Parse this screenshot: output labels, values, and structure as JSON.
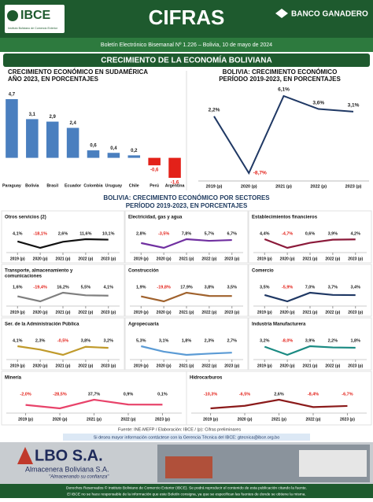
{
  "header": {
    "logo": "IBCE",
    "logo_sub": "Instituto Boliviano de Comercio Exterior",
    "title": "CIFRAS",
    "sponsor": "BANCO GANADERO",
    "subtitle": "Boletín Electrónico Bisemanal Nº 1.226 – Bolivia, 10 de mayo de 2024"
  },
  "section_title": "CRECIMIENTO DE LA ECONOMÍA BOLIVIANA",
  "sectors_title": [
    "BOLIVIA: CRECIMIENTO ECONÓMICO POR SECTORES",
    "PERÍODO 2019-2023, EN PORCENTAJES"
  ],
  "chart_data": [
    {
      "type": "bar",
      "title": [
        "CRECIMIENTO ECONÓMICO EN SUDAMÉRICA",
        "AÑO 2023, EN PORCENTAJES"
      ],
      "categories": [
        "Paraguay",
        "Bolivia",
        "Brasil",
        "Ecuador",
        "Colombia",
        "Uruguay",
        "Chile",
        "Perú",
        "Argentina"
      ],
      "values": [
        4.7,
        3.1,
        2.9,
        2.4,
        0.6,
        0.4,
        0.2,
        -0.6,
        -1.6
      ],
      "value_labels": [
        "4,7",
        "3,1",
        "2,9",
        "2,4",
        "0,6",
        "0,4",
        "0,2",
        "-0,6",
        "-1,6"
      ],
      "color": "#4a7fbf",
      "negative_color": "#e32119"
    },
    {
      "type": "line",
      "title": [
        "BOLIVIA: CRECIMIENTO ECONÓMICO",
        "PERÍODO 2019-2023, EN PORCENTAJES"
      ],
      "categories": [
        "2019 (p)",
        "2020 (p)",
        "2021 (p)",
        "2022 (p)",
        "2023 (p)"
      ],
      "values": [
        2.2,
        -8.7,
        6.1,
        3.6,
        3.1
      ],
      "value_labels": [
        "2,2%",
        "-8,7%",
        "6,1%",
        "3,6%",
        "3,1%"
      ],
      "color": "#1f3864"
    },
    {
      "type": "sparkline",
      "title": [
        "Otros servicios (2)"
      ],
      "categories": [
        "2019 (p)",
        "2020 (p)",
        "2021 (p)",
        "2022 (p)",
        "2023 (p)"
      ],
      "values": [
        4.1,
        -18.1,
        2.6,
        11.6,
        10.1
      ],
      "value_labels": [
        "4,1%",
        "-18,1%",
        "2,6%",
        "11,6%",
        "10,1%"
      ],
      "color": "#111111"
    },
    {
      "type": "sparkline",
      "title": [
        "Electricidad, gas y agua"
      ],
      "categories": [
        "2019 (p)",
        "2020 (p)",
        "2021 (p)",
        "2022 (p)",
        "2023 (p)"
      ],
      "values": [
        2.8,
        -3.5,
        7.8,
        5.7,
        6.7
      ],
      "value_labels": [
        "2,8%",
        "-3,5%",
        "7,8%",
        "5,7%",
        "6,7%"
      ],
      "color": "#7030a0"
    },
    {
      "type": "sparkline",
      "title": [
        "Establecimientos financieros"
      ],
      "categories": [
        "2019 (p)",
        "2020 (p)",
        "2021 (p)",
        "2022 (p)",
        "2023 (p)"
      ],
      "values": [
        4.4,
        -4.7,
        0.6,
        3.9,
        4.2
      ],
      "value_labels": [
        "4,4%",
        "-4,7%",
        "0,6%",
        "3,9%",
        "4,2%"
      ],
      "color": "#8b1a3a"
    },
    {
      "type": "sparkline",
      "title": [
        "Transporte, almacenamiento y",
        "comunicaciones"
      ],
      "categories": [
        "2019 (p)",
        "2020 (p)",
        "2021 (p)",
        "2022 (p)",
        "2023 (p)"
      ],
      "values": [
        1.6,
        -19.4,
        16.2,
        5.5,
        4.1
      ],
      "value_labels": [
        "1,6%",
        "-19,4%",
        "16,2%",
        "5,5%",
        "4,1%"
      ],
      "color": "#7f7f7f"
    },
    {
      "type": "sparkline",
      "title": [
        "Construcción"
      ],
      "categories": [
        "2019 (p)",
        "2020 (p)",
        "2021 (p)",
        "2022 (p)",
        "2023 (p)"
      ],
      "values": [
        1.9,
        -19.8,
        17.9,
        3.8,
        3.5
      ],
      "value_labels": [
        "1,9%",
        "-19,8%",
        "17,9%",
        "3,8%",
        "3,5%"
      ],
      "color": "#a0622d"
    },
    {
      "type": "sparkline",
      "title": [
        "Comercio"
      ],
      "categories": [
        "2019 (p)",
        "2020 (p)",
        "2021 (p)",
        "2022 (p)",
        "2023 (p)"
      ],
      "values": [
        3.5,
        -5.9,
        7.0,
        3.7,
        3.4
      ],
      "value_labels": [
        "3,5%",
        "-5,9%",
        "7,0%",
        "3,7%",
        "3,4%"
      ],
      "color": "#1f3864"
    },
    {
      "type": "sparkline",
      "title": [
        "Ser. de la Administración Pública"
      ],
      "categories": [
        "2019 (p)",
        "2020 (p)",
        "2021 (p)",
        "2022 (p)",
        "2023 (p)"
      ],
      "values": [
        4.1,
        2.3,
        -0.5,
        3.8,
        3.2
      ],
      "value_labels": [
        "4,1%",
        "2,3%",
        "-0,5%",
        "3,8%",
        "3,2%"
      ],
      "color": "#c09a2b"
    },
    {
      "type": "sparkline",
      "title": [
        "Agropecuaria"
      ],
      "categories": [
        "2019 (p)",
        "2020 (p)",
        "2021 (p)",
        "2022 (p)",
        "2023 (p)"
      ],
      "values": [
        5.3,
        3.1,
        1.8,
        2.3,
        2.7
      ],
      "value_labels": [
        "5,3%",
        "3,1%",
        "1,8%",
        "2,3%",
        "2,7%"
      ],
      "color": "#5b9bd5"
    },
    {
      "type": "sparkline",
      "title": [
        "Industria Manufacturera"
      ],
      "categories": [
        "2019 (p)",
        "2020 (p)",
        "2021 (p)",
        "2022 (p)",
        "2023 (p)"
      ],
      "values": [
        3.2,
        -8.0,
        3.9,
        2.2,
        1.8
      ],
      "value_labels": [
        "3,2%",
        "-8,0%",
        "3,9%",
        "2,2%",
        "1,8%"
      ],
      "color": "#1a8a82"
    },
    {
      "type": "sparkline",
      "title": [
        "Minería"
      ],
      "categories": [
        "2019 (p)",
        "2020 (p)",
        "2021 (p)",
        "2022 (p)",
        "2023 (p)"
      ],
      "values": [
        -2.0,
        -28.5,
        37.7,
        0.9,
        0.1
      ],
      "value_labels": [
        "-2,0%",
        "-28,5%",
        "37,7%",
        "0,9%",
        "0,1%"
      ],
      "color": "#e8436a"
    },
    {
      "type": "sparkline",
      "title": [
        "Hidrocarburos"
      ],
      "categories": [
        "2019 (p)",
        "2020 (p)",
        "2021 (p)",
        "2022 (p)",
        "2023 (p)"
      ],
      "values": [
        -10.3,
        -6.5,
        2.6,
        -8.4,
        -6.7
      ],
      "value_labels": [
        "-10,3%",
        "-6,5%",
        "2,6%",
        "-8,4%",
        "-6,7%"
      ],
      "color": "#8b1a1a"
    }
  ],
  "source": "Fuente: INE-MEFP / Elaboración: IBCE / (p): Cifras preliminares",
  "contact": "Si desea mayor información contáctese con la Gerencia Técnica del IBCE: gtecnica@ibce.org.bo",
  "ad": {
    "brand": "LBO S.A.",
    "name": "Almacenera Boliviana S.A.",
    "slogan": "\"Almacenando su confianza\""
  },
  "footer": [
    "Derechos Reservados © Instituto Boliviano de Comercio Exterior (IBCE). Se podrá reproducir el contenido de esta publicación citando la fuente.",
    "El IBCE no se hace responsable de la información que este Boletín consigna, ya que se especifican las fuentes de donde se obtiene la misma."
  ]
}
